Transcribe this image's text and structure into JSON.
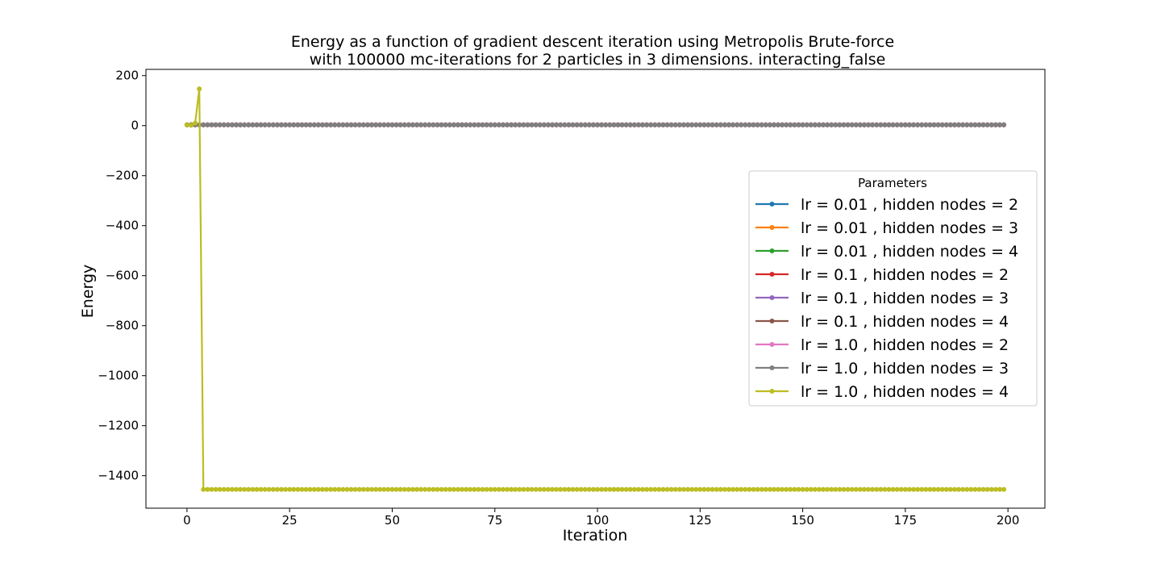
{
  "chart_data": {
    "type": "line",
    "title": "Energy as a function of gradient descent iteration using Metropolis Brute-force",
    "subtitle": "with 100000 mc-iterations for 2 particles in 3 dimensions. interacting_false",
    "xlabel": "Iteration",
    "ylabel": "Energy",
    "xlim": [
      -10,
      209
    ],
    "ylim": [
      -1530,
      225
    ],
    "xticks": [
      0,
      25,
      50,
      75,
      100,
      125,
      150,
      175,
      200
    ],
    "yticks": [
      200,
      0,
      -200,
      -400,
      -600,
      -800,
      -1000,
      -1200,
      -1400
    ],
    "ytick_labels": [
      "200",
      "0",
      "−200",
      "−400",
      "−600",
      "−800",
      "−1000",
      "−1200",
      "−1400"
    ],
    "grid": false,
    "legend": {
      "title": "Parameters",
      "position": "center-right"
    },
    "n_points": 200,
    "series": [
      {
        "name": "lr = 0.01 , hidden nodes = 2",
        "color": "#1f77b4",
        "head": [
          3.0,
          3.0,
          3.0,
          3.0,
          3.0,
          3.0,
          3.0,
          3.0,
          3.0,
          3.0
        ],
        "steady": 3.0
      },
      {
        "name": "lr = 0.01 , hidden nodes = 3",
        "color": "#ff7f0e",
        "head": [
          3.0,
          3.0,
          3.0,
          3.0,
          3.0,
          3.0,
          3.0,
          3.0,
          3.0,
          3.0
        ],
        "steady": 3.0
      },
      {
        "name": "lr = 0.01 , hidden nodes = 4",
        "color": "#2ca02c",
        "head": [
          3.0,
          3.0,
          3.0,
          3.0,
          3.0,
          3.0,
          3.0,
          3.0,
          3.0,
          3.0
        ],
        "steady": 3.0
      },
      {
        "name": "lr = 0.1 , hidden nodes = 2",
        "color": "#d62728",
        "head": [
          3.0,
          3.0,
          3.0,
          3.0,
          3.0,
          3.0,
          3.0,
          3.0,
          3.0,
          3.0
        ],
        "steady": 3.0
      },
      {
        "name": "lr = 0.1 , hidden nodes = 3",
        "color": "#9467bd",
        "head": [
          3.0,
          3.0,
          3.0,
          3.0,
          3.0,
          3.0,
          3.0,
          3.0,
          3.0,
          3.0
        ],
        "steady": 3.0
      },
      {
        "name": "lr = 0.1 , hidden nodes = 4",
        "color": "#8c564b",
        "head": [
          3.0,
          3.0,
          3.0,
          3.0,
          3.0,
          3.0,
          3.0,
          3.0,
          3.0,
          3.0
        ],
        "steady": 3.0
      },
      {
        "name": "lr = 1.0 , hidden nodes = 2",
        "color": "#e377c2",
        "head": [
          3.0,
          3.0,
          3.0,
          3.0,
          3.0,
          3.0,
          3.0,
          3.0,
          3.0,
          3.0
        ],
        "steady": 3.0
      },
      {
        "name": "lr = 1.0 , hidden nodes = 3",
        "color": "#7f7f7f",
        "head": [
          3.0,
          3.0,
          3.0,
          3.0,
          3.0,
          3.0,
          3.0,
          3.0,
          3.0,
          3.0
        ],
        "steady": 3.0
      },
      {
        "name": "lr = 1.0 , hidden nodes = 4",
        "color": "#bcbd22",
        "head": [
          3.0,
          1.0,
          10.0,
          147.0
        ],
        "steady": -1455.0
      }
    ]
  }
}
